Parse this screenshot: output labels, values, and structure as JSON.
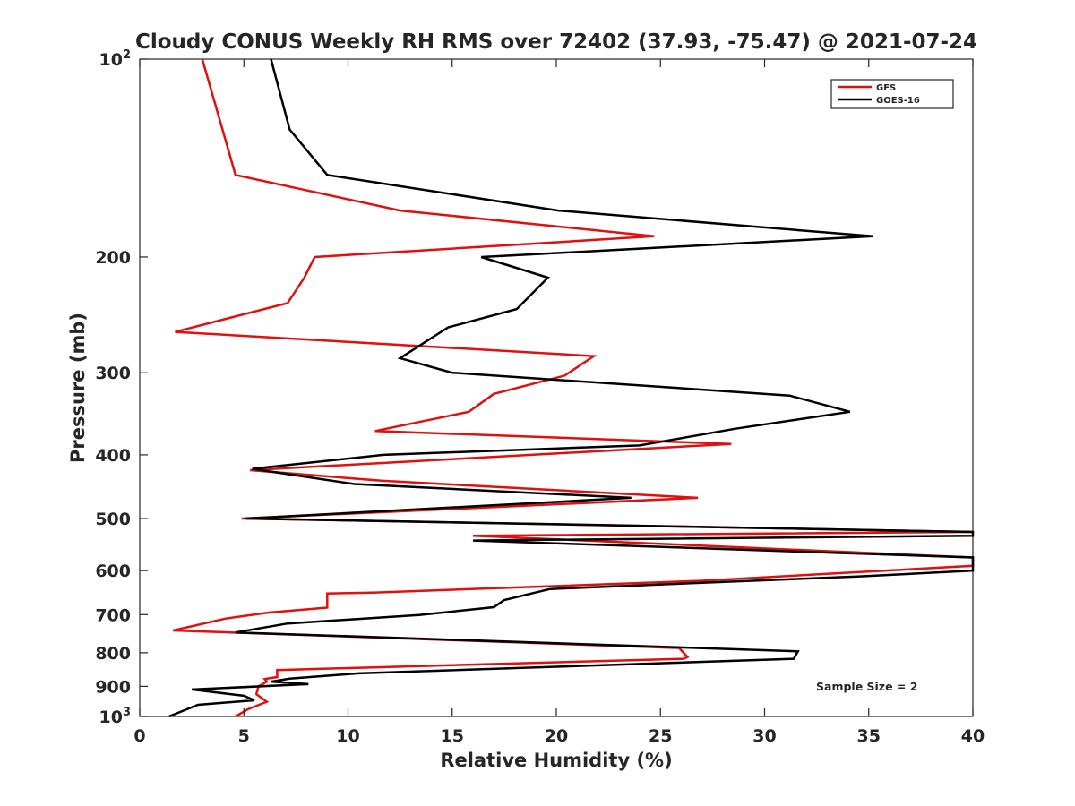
{
  "chart_data": {
    "type": "line",
    "title": "Cloudy CONUS Weekly RH RMS over 72402 (37.93, -75.47) @ 2021-07-24",
    "xlabel": "Relative Humidity (%)",
    "ylabel": "Pressure (mb)",
    "xlim": [
      0,
      40
    ],
    "ylim": [
      100,
      1000
    ],
    "yscale": "log",
    "y_direction": "reversed",
    "grid": false,
    "legend_position": "top-right",
    "x_ticks": [
      0,
      5,
      10,
      15,
      20,
      25,
      30,
      35,
      40
    ],
    "x_tick_labels": [
      "0",
      "5",
      "10",
      "15",
      "20",
      "25",
      "30",
      "35",
      "40"
    ],
    "y_ticks": [
      {
        "value": 100,
        "base": "10",
        "exp": "2",
        "label": ""
      },
      {
        "value": 200,
        "base": "",
        "exp": "",
        "label": "200"
      },
      {
        "value": 300,
        "base": "",
        "exp": "",
        "label": "300"
      },
      {
        "value": 400,
        "base": "",
        "exp": "",
        "label": "400"
      },
      {
        "value": 500,
        "base": "",
        "exp": "",
        "label": "500"
      },
      {
        "value": 600,
        "base": "",
        "exp": "",
        "label": "600"
      },
      {
        "value": 700,
        "base": "",
        "exp": "",
        "label": "700"
      },
      {
        "value": 800,
        "base": "",
        "exp": "",
        "label": "800"
      },
      {
        "value": 900,
        "base": "",
        "exp": "",
        "label": "900"
      },
      {
        "value": 1000,
        "base": "10",
        "exp": "3",
        "label": ""
      }
    ],
    "annotation": "Sample Size = 2",
    "series": [
      {
        "name": "GFS",
        "color": "#e01010",
        "points": [
          [
            3.0,
            100
          ],
          [
            4.6,
            150
          ],
          [
            12.5,
            170
          ],
          [
            24.7,
            186
          ],
          [
            8.4,
            200
          ],
          [
            7.9,
            215
          ],
          [
            7.1,
            235
          ],
          [
            1.7,
            260
          ],
          [
            21.8,
            283
          ],
          [
            20.4,
            303
          ],
          [
            17.0,
            323
          ],
          [
            15.8,
            344
          ],
          [
            11.3,
            368
          ],
          [
            28.4,
            385
          ],
          [
            5.3,
            422
          ],
          [
            11.6,
            438
          ],
          [
            26.8,
            465
          ],
          [
            4.9,
            500
          ],
          [
            40.0,
            524
          ],
          [
            16.0,
            531
          ],
          [
            40.0,
            573
          ],
          [
            40.0,
            590
          ],
          [
            26.9,
            622
          ],
          [
            11.2,
            648
          ],
          [
            9.0,
            650
          ],
          [
            9.0,
            683
          ],
          [
            6.2,
            695
          ],
          [
            4.1,
            710
          ],
          [
            1.6,
            740
          ],
          [
            25.9,
            787
          ],
          [
            26.3,
            812
          ],
          [
            26.1,
            817
          ],
          [
            6.6,
            850
          ],
          [
            6.6,
            871
          ],
          [
            6.0,
            877
          ],
          [
            6.1,
            885
          ],
          [
            5.7,
            900
          ],
          [
            5.6,
            925
          ],
          [
            6.1,
            950
          ],
          [
            5.2,
            975
          ],
          [
            4.6,
            1000
          ]
        ]
      },
      {
        "name": "GOES-16",
        "color": "#000000",
        "points": [
          [
            6.3,
            100
          ],
          [
            7.2,
            128
          ],
          [
            9.0,
            150
          ],
          [
            20.1,
            170
          ],
          [
            35.2,
            186
          ],
          [
            16.4,
            200
          ],
          [
            19.6,
            215
          ],
          [
            18.1,
            240
          ],
          [
            14.8,
            256
          ],
          [
            12.5,
            285
          ],
          [
            15.0,
            300
          ],
          [
            31.2,
            325
          ],
          [
            34.1,
            344
          ],
          [
            28.6,
            365
          ],
          [
            24.0,
            387
          ],
          [
            11.7,
            400
          ],
          [
            5.4,
            420
          ],
          [
            10.3,
            443
          ],
          [
            23.6,
            465
          ],
          [
            5.1,
            500
          ],
          [
            40.0,
            524
          ],
          [
            40.0,
            531
          ],
          [
            16.0,
            540
          ],
          [
            40.0,
            573
          ],
          [
            40.0,
            600
          ],
          [
            34.7,
            612
          ],
          [
            19.7,
            640
          ],
          [
            17.5,
            665
          ],
          [
            17.0,
            682
          ],
          [
            13.4,
            701
          ],
          [
            7.1,
            722
          ],
          [
            4.6,
            745
          ],
          [
            31.6,
            796
          ],
          [
            31.4,
            817
          ],
          [
            10.5,
            860
          ],
          [
            7.2,
            876
          ],
          [
            6.3,
            885
          ],
          [
            8.1,
            893
          ],
          [
            2.5,
            910
          ],
          [
            5.0,
            930
          ],
          [
            5.5,
            945
          ],
          [
            2.8,
            960
          ],
          [
            1.4,
            1000
          ]
        ]
      }
    ]
  }
}
